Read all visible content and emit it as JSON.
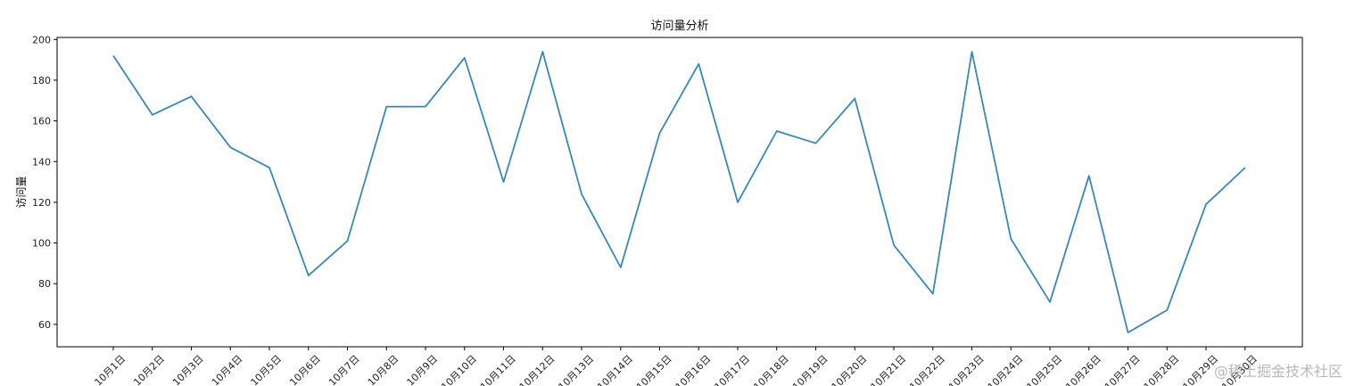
{
  "chart_data": {
    "type": "line",
    "title": "访问量分析",
    "xlabel": "",
    "ylabel": "访问量",
    "categories": [
      "10月1日",
      "10月2日",
      "10月3日",
      "10月4日",
      "10月5日",
      "10月6日",
      "10月7日",
      "10月8日",
      "10月9日",
      "10月10日",
      "10月11日",
      "10月12日",
      "10月13日",
      "10月14日",
      "10月15日",
      "10月16日",
      "10月17日",
      "10月18日",
      "10月19日",
      "10月20日",
      "10月21日",
      "10月22日",
      "10月23日",
      "10月24日",
      "10月25日",
      "10月26日",
      "10月27日",
      "10月28日",
      "10月29日",
      "10月30日"
    ],
    "values": [
      192,
      163,
      172,
      147,
      137,
      84,
      101,
      167,
      167,
      191,
      130,
      194,
      124,
      88,
      154,
      188,
      120,
      155,
      149,
      171,
      99,
      75,
      194,
      102,
      71,
      133,
      56,
      67,
      119,
      137
    ],
    "yticks": [
      60,
      80,
      100,
      120,
      140,
      160,
      180,
      200
    ],
    "ylim": [
      49,
      201
    ],
    "grid": false,
    "line_color": "#3a87b5"
  },
  "watermark": "@稀土掘金技术社区"
}
